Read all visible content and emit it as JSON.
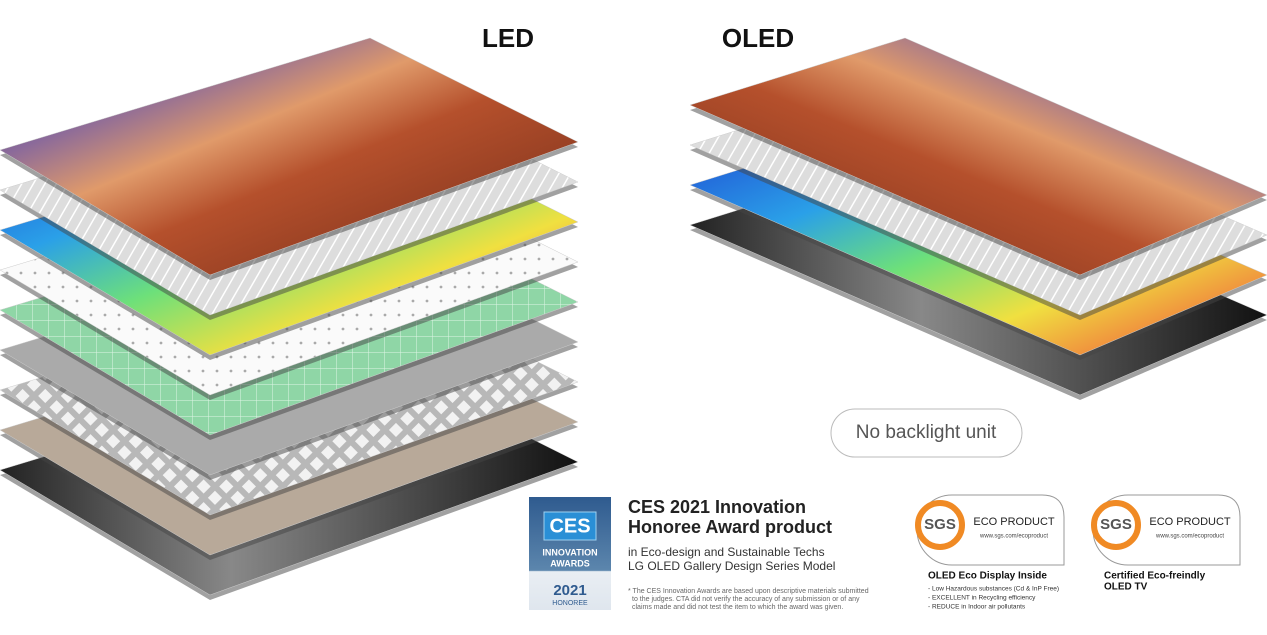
{
  "headings": {
    "left": "LED",
    "right": "OLED"
  },
  "callout": "No backlight unit",
  "ces_badge": {
    "logo": "CES",
    "line1": "INNOVATION",
    "line2": "AWARDS",
    "year": "2021",
    "rank": "HONOREE"
  },
  "award": {
    "title_lines": [
      "CES 2021 Innovation",
      "Honoree Award product"
    ],
    "subtitle_lines": [
      "in Eco-design and Sustainable Techs",
      "LG OLED Gallery Design Series Model"
    ],
    "footnote_lines": [
      "* The CES Innovation Awards are based upon descriptive materials submitted",
      "to the judges. CTA did not verify the accuracy of any submission or of any",
      "claims made and did not test the item to which the award was given."
    ]
  },
  "sgs_badges": [
    {
      "logo": "SGS",
      "label": "ECO PRODUCT",
      "url": "www.sgs.com/ecoproduct",
      "caption_lines": [
        "OLED Eco Display Inside"
      ],
      "bullets": [
        "- Low Hazardous substances (Cd & InP Free)",
        "- EXCELLENT in Recycling efficiency",
        "- REDUCE in Indoor air pollutants"
      ]
    },
    {
      "logo": "SGS",
      "label": "ECO PRODUCT",
      "url": "www.sgs.com/ecoproduct",
      "caption_lines": [
        "Certified Eco-freindly",
        "OLED TV"
      ],
      "bullets": []
    }
  ]
}
